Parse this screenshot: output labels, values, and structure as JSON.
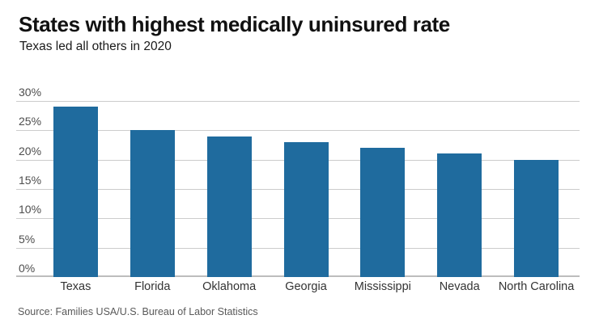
{
  "header": {
    "title": "States with highest medically uninsured rate",
    "subtitle": "Texas led all others in 2020"
  },
  "chart_data": {
    "type": "bar",
    "title": "States with highest medically uninsured rate",
    "subtitle": "Texas led all others in 2020",
    "categories": [
      "Texas",
      "Florida",
      "Oklahoma",
      "Georgia",
      "Mississippi",
      "Nevada",
      "North Carolina"
    ],
    "values": [
      29,
      25,
      24,
      23,
      22,
      21,
      20
    ],
    "unit": "%",
    "xlabel": "",
    "ylabel": "",
    "ylim": [
      0,
      30
    ],
    "ytick_step": 5,
    "ytick_labels": [
      "0%",
      "5%",
      "10%",
      "15%",
      "20%",
      "25%",
      "30%"
    ],
    "grid": true,
    "legend": false,
    "colors": {
      "bar": "#1f6b9e",
      "grid": "#cccccc",
      "axis": "#bdbdbd",
      "ytick_text": "#4d4d4d",
      "xtick_text": "#333333"
    }
  },
  "footer": {
    "source": "Source: Families USA/U.S. Bureau of Labor Statistics"
  }
}
